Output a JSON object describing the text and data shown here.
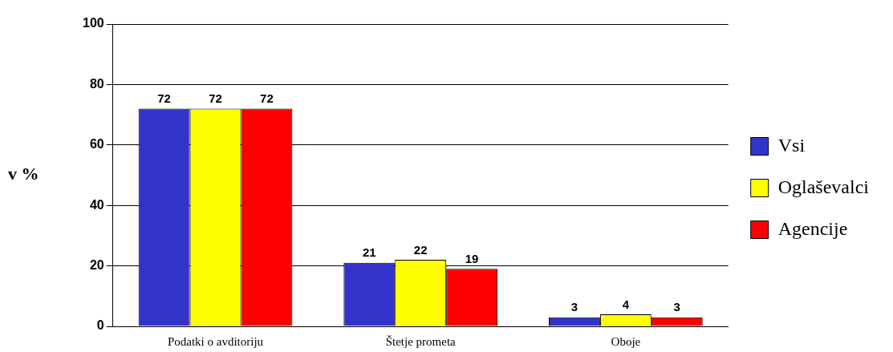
{
  "chart_data": {
    "type": "bar",
    "ylabel": "v %",
    "categories": [
      "Podatki o avditoriju",
      "Štetje prometa",
      "Oboje"
    ],
    "series": [
      {
        "name": "Vsi",
        "color": "#3333cc",
        "values": [
          72,
          21,
          3
        ]
      },
      {
        "name": "Oglaševalci",
        "color": "#ffff00",
        "values": [
          72,
          22,
          4
        ]
      },
      {
        "name": "Agencije",
        "color": "#ff0000",
        "values": [
          72,
          19,
          3
        ]
      }
    ],
    "ylim": [
      0,
      100
    ],
    "yticks": [
      0,
      20,
      40,
      60,
      80,
      100
    ],
    "grid": "y",
    "legend": "right",
    "data_labels": true
  }
}
